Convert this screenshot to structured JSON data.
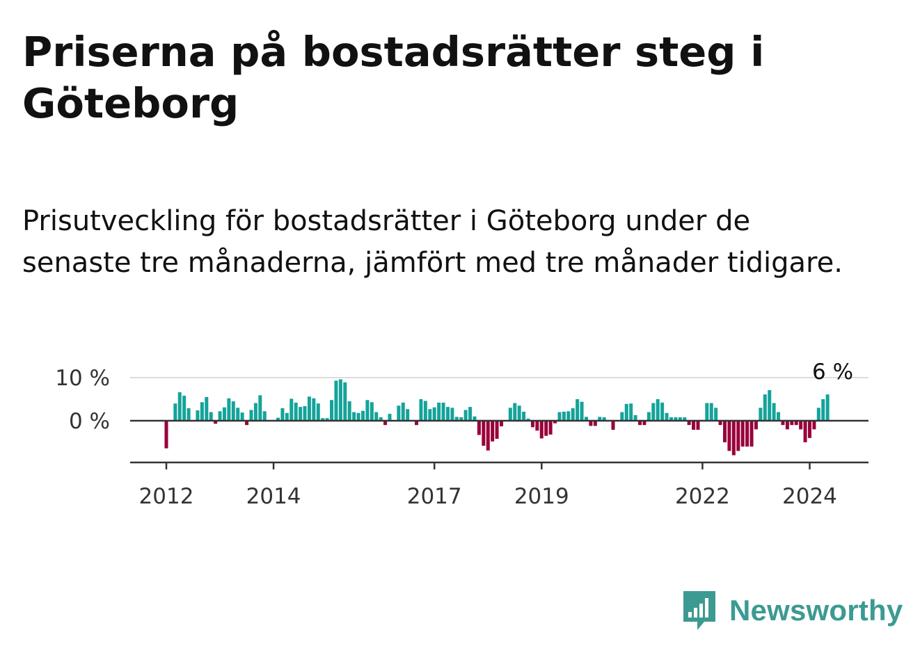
{
  "header": {
    "title": "Priserna på bostadsrätter steg i Göteborg",
    "subtitle": "Prisutveckling för bostadsrätter i Göteborg under de senaste tre månaderna, jämfört med tre månader tidigare."
  },
  "chart_data": {
    "type": "bar",
    "title": "Priserna på bostadsrätter steg i Göteborg",
    "xlabel": "",
    "ylabel": "",
    "x_start": "2012-01",
    "step": "month",
    "ylim": [
      -9.5,
      10
    ],
    "y_ticks": [
      {
        "value": 10,
        "label": "10 %"
      },
      {
        "value": 0,
        "label": "0 %"
      }
    ],
    "x_ticks": [
      {
        "index": 0,
        "label": "2012"
      },
      {
        "index": 24,
        "label": "2014"
      },
      {
        "index": 60,
        "label": "2017"
      },
      {
        "index": 84,
        "label": "2019"
      },
      {
        "index": 120,
        "label": "2022"
      },
      {
        "index": 144,
        "label": "2024"
      }
    ],
    "annotation": {
      "index": 149,
      "label": "6 %"
    },
    "values": [
      -6.4,
      0,
      4.0,
      6.6,
      5.8,
      2.9,
      0,
      2.4,
      4.3,
      5.5,
      2.0,
      -0.7,
      2.2,
      3.1,
      5.2,
      4.5,
      3.0,
      1.9,
      -1.0,
      2.5,
      4.1,
      5.9,
      2.2,
      0,
      0,
      0.7,
      2.9,
      1.8,
      5.1,
      4.2,
      3.2,
      3.4,
      5.6,
      5.2,
      4.0,
      0.6,
      0.6,
      4.8,
      9.3,
      9.6,
      8.9,
      4.5,
      2.0,
      1.8,
      2.3,
      4.8,
      4.3,
      2.0,
      0.8,
      -1.0,
      1.6,
      0.1,
      3.5,
      4.2,
      2.7,
      0,
      -1.0,
      5.0,
      4.6,
      2.7,
      3.1,
      4.2,
      4.2,
      3.2,
      3.0,
      0.9,
      0.8,
      2.5,
      3.2,
      1.0,
      -3.3,
      -5.8,
      -6.9,
      -4.8,
      -4.2,
      -1.3,
      0,
      3.0,
      4.1,
      3.5,
      2.1,
      0.5,
      -1.5,
      -2.3,
      -4.1,
      -3.5,
      -3.2,
      -0.6,
      2.0,
      2.1,
      2.2,
      2.9,
      5.0,
      4.4,
      0.9,
      -1.2,
      -1.2,
      0.9,
      0.8,
      0,
      -2.1,
      0,
      2.0,
      3.9,
      4.0,
      1.3,
      -1.0,
      -1.0,
      2.0,
      4.1,
      5.0,
      4.2,
      1.8,
      0.8,
      0.8,
      0.8,
      0.8,
      -1.0,
      -2.1,
      -2.1,
      0,
      4.1,
      4.1,
      3.0,
      -1.0,
      -5.0,
      -7.0,
      -8.0,
      -7.0,
      -6.0,
      -6.0,
      -6.0,
      -2.0,
      3.0,
      6.1,
      7.1,
      4.1,
      2.0,
      -1.0,
      -2.0,
      -1.0,
      -1.0,
      -2.0,
      -5.0,
      -4.0,
      -2.0,
      3.0,
      5.0,
      6.1
    ]
  },
  "colors": {
    "positive": "#14a39a",
    "negative": "#99003b",
    "axis": "#333333",
    "gridline": "#dddddd",
    "brand": "#3c9a92"
  },
  "brand": {
    "name": "Newsworthy",
    "icon": "newsworthy-logo-icon"
  }
}
